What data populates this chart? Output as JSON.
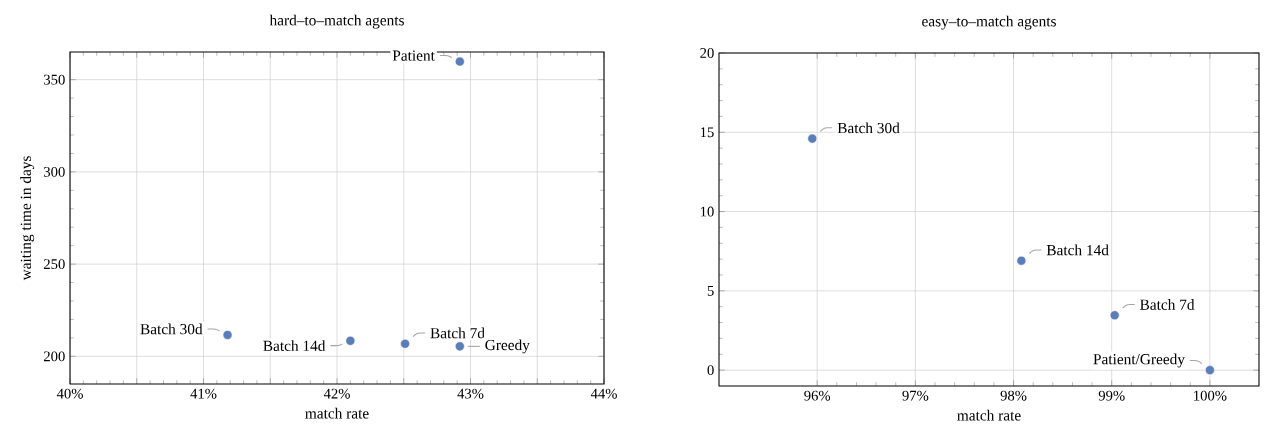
{
  "chart_data": [
    {
      "type": "scatter",
      "title": "hard–to–match agents",
      "xlabel": "match rate",
      "ylabel": "waiting time in days",
      "x": [
        42.92,
        41.18,
        42.1,
        42.51,
        42.92
      ],
      "values": [
        359.8,
        211.6,
        208.4,
        206.8,
        205.4
      ],
      "color": "#5b7db9",
      "marker": "circle",
      "xlim": [
        40,
        44
      ],
      "ylim": [
        185,
        365
      ],
      "xticks": [
        {
          "value": 40,
          "label": "40%"
        },
        {
          "value": 40.5,
          "label": null
        },
        {
          "value": 41,
          "label": "41%"
        },
        {
          "value": 41.5,
          "label": null
        },
        {
          "value": 42,
          "label": "42%"
        },
        {
          "value": 42.5,
          "label": null
        },
        {
          "value": 43,
          "label": "43%"
        },
        {
          "value": 43.5,
          "label": null
        },
        {
          "value": 44,
          "label": "44%"
        }
      ],
      "yticks": [
        200,
        250,
        300,
        350
      ],
      "grid": true,
      "annotations": [
        {
          "text": "Patient",
          "x": 42.92,
          "y": 359.8
        },
        {
          "text": "Batch 30d",
          "x": 41.18,
          "y": 211.6
        },
        {
          "text": "Batch 14d",
          "x": 42.1,
          "y": 208.4
        },
        {
          "text": "Batch 7d",
          "x": 42.51,
          "y": 206.8
        },
        {
          "text": "Greedy",
          "x": 42.92,
          "y": 205.4
        }
      ]
    },
    {
      "type": "scatter",
      "title": "easy–to–match agents",
      "xlabel": "match rate",
      "x": [
        95.95,
        98.08,
        99.03,
        100
      ],
      "values": [
        14.6,
        6.9,
        3.46,
        0
      ],
      "color": "#5b7db9",
      "marker": "circle",
      "xlim": [
        95,
        100.5
      ],
      "ylim": [
        -1,
        20
      ],
      "xticks": [
        {
          "value": 96,
          "label": "96%"
        },
        {
          "value": 97,
          "label": "97%"
        },
        {
          "value": 98,
          "label": "98%"
        },
        {
          "value": 99,
          "label": "99%"
        },
        {
          "value": 100,
          "label": "100%"
        }
      ],
      "yticks": [
        0,
        5,
        10,
        15,
        20
      ],
      "grid": true,
      "annotations": [
        {
          "text": "Batch 30d",
          "x": 95.95,
          "y": 14.6
        },
        {
          "text": "Batch 14d",
          "x": 98.08,
          "y": 6.9
        },
        {
          "text": "Batch 7d",
          "x": 99.03,
          "y": 3.46
        },
        {
          "text": "Patient/Greedy",
          "x": 100,
          "y": 0
        }
      ]
    }
  ]
}
